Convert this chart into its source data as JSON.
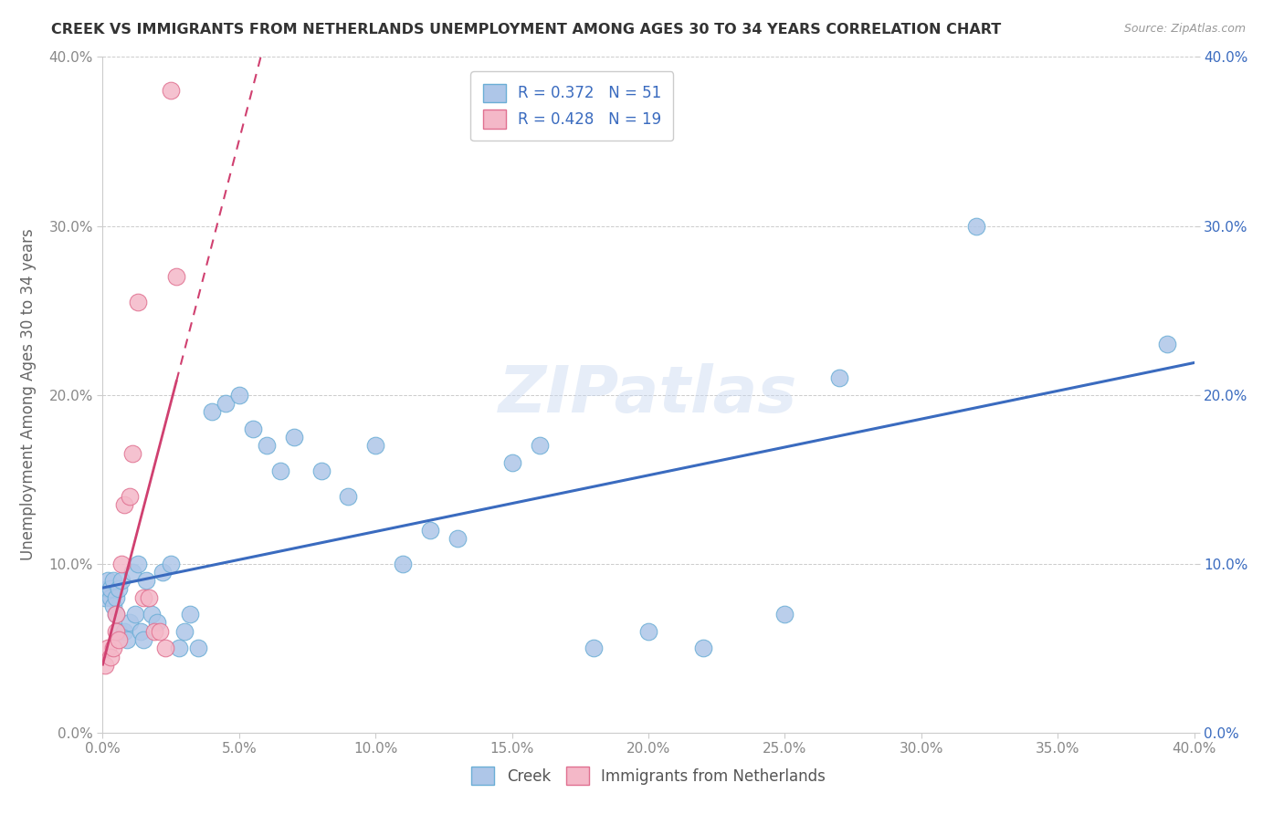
{
  "title": "CREEK VS IMMIGRANTS FROM NETHERLANDS UNEMPLOYMENT AMONG AGES 30 TO 34 YEARS CORRELATION CHART",
  "source": "Source: ZipAtlas.com",
  "ylabel": "Unemployment Among Ages 30 to 34 years",
  "xlim": [
    0.0,
    0.4
  ],
  "ylim": [
    0.0,
    0.4
  ],
  "xticks": [
    0.0,
    0.05,
    0.1,
    0.15,
    0.2,
    0.25,
    0.3,
    0.35,
    0.4
  ],
  "yticks": [
    0.0,
    0.1,
    0.2,
    0.3,
    0.4
  ],
  "creek_color": "#aec6e8",
  "creek_edge_color": "#6baed6",
  "netherlands_color": "#f4b8c8",
  "netherlands_edge_color": "#e07090",
  "trend_creek_color": "#3a6bbf",
  "trend_netherlands_color": "#d04070",
  "R_creek": 0.372,
  "N_creek": 51,
  "R_netherlands": 0.428,
  "N_netherlands": 19,
  "watermark": "ZIPatlas",
  "creek_x": [
    0.001,
    0.002,
    0.002,
    0.003,
    0.003,
    0.004,
    0.004,
    0.005,
    0.005,
    0.006,
    0.006,
    0.007,
    0.008,
    0.009,
    0.01,
    0.011,
    0.012,
    0.013,
    0.014,
    0.015,
    0.016,
    0.018,
    0.02,
    0.022,
    0.025,
    0.028,
    0.03,
    0.032,
    0.035,
    0.04,
    0.045,
    0.05,
    0.055,
    0.06,
    0.065,
    0.07,
    0.08,
    0.09,
    0.1,
    0.11,
    0.12,
    0.13,
    0.15,
    0.16,
    0.18,
    0.2,
    0.22,
    0.25,
    0.27,
    0.32,
    0.39
  ],
  "creek_y": [
    0.08,
    0.085,
    0.09,
    0.08,
    0.085,
    0.075,
    0.09,
    0.08,
    0.07,
    0.085,
    0.06,
    0.09,
    0.06,
    0.055,
    0.065,
    0.095,
    0.07,
    0.1,
    0.06,
    0.055,
    0.09,
    0.07,
    0.065,
    0.095,
    0.1,
    0.05,
    0.06,
    0.07,
    0.05,
    0.19,
    0.195,
    0.2,
    0.18,
    0.17,
    0.155,
    0.175,
    0.155,
    0.14,
    0.17,
    0.1,
    0.12,
    0.115,
    0.16,
    0.17,
    0.05,
    0.06,
    0.05,
    0.07,
    0.21,
    0.3,
    0.23
  ],
  "netherlands_x": [
    0.001,
    0.002,
    0.003,
    0.004,
    0.005,
    0.005,
    0.006,
    0.007,
    0.008,
    0.01,
    0.011,
    0.013,
    0.015,
    0.017,
    0.019,
    0.021,
    0.023,
    0.025,
    0.027
  ],
  "netherlands_y": [
    0.04,
    0.05,
    0.045,
    0.05,
    0.06,
    0.07,
    0.055,
    0.1,
    0.135,
    0.14,
    0.165,
    0.255,
    0.08,
    0.08,
    0.06,
    0.06,
    0.05,
    0.38,
    0.27
  ]
}
